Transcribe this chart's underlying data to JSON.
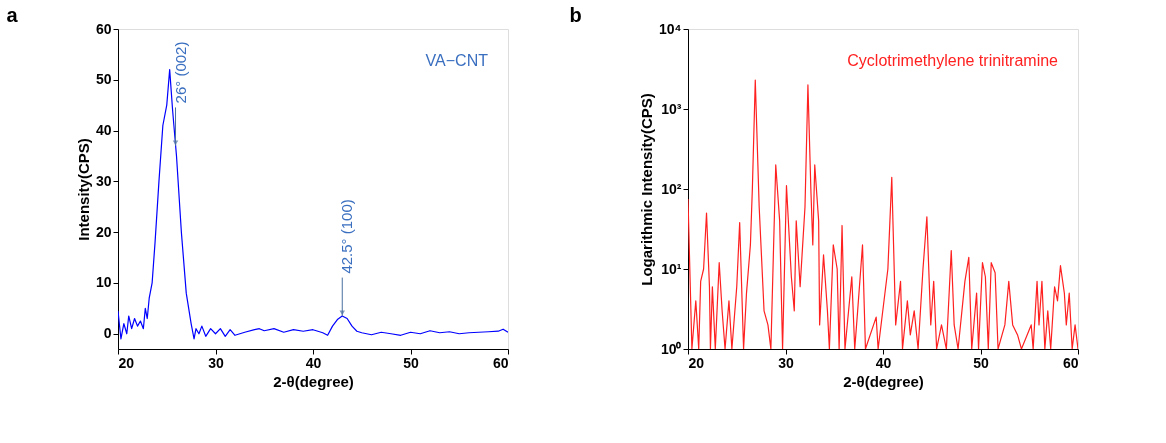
{
  "chart_data": [
    {
      "type": "line",
      "title": "a",
      "xlabel": "2-θ(degree)",
      "ylabel": "Intensity(CPS)",
      "xlim": [
        20,
        60
      ],
      "xticks": [
        20,
        30,
        40,
        50,
        60
      ],
      "ylim": [
        -3,
        60
      ],
      "yticks": [
        0,
        10,
        20,
        30,
        40,
        50,
        60
      ],
      "grid": false,
      "annotations": [
        {
          "text": "26° (002)",
          "x": 25.9,
          "y": 37
        },
        {
          "text": "42.5° (100)",
          "x": 43,
          "y": 3.5
        }
      ],
      "series": [
        {
          "name": "VA−CNT",
          "color": "#0000ff",
          "x": [
            20,
            20.3,
            20.6,
            20.9,
            21.1,
            21.4,
            21.7,
            22,
            22.3,
            22.6,
            22.8,
            23,
            23.2,
            23.5,
            23.8,
            24.2,
            24.6,
            25,
            25.3,
            25.6,
            26,
            26.5,
            27,
            27.5,
            27.8,
            28,
            28.3,
            28.6,
            29,
            29.5,
            30,
            30.5,
            31,
            31.5,
            32,
            33,
            34,
            34.5,
            35,
            36,
            37,
            38,
            39,
            40,
            41,
            41.5,
            42,
            42.5,
            43,
            43.5,
            44,
            44.5,
            45,
            46,
            47,
            48,
            49,
            50,
            51,
            52,
            53,
            54,
            55,
            56,
            57,
            58,
            59,
            59.5,
            60
          ],
          "values": [
            4.5,
            -1,
            2,
            0,
            3.5,
            1,
            3,
            1.5,
            2.5,
            1,
            5,
            3,
            7,
            10,
            18,
            30,
            41,
            45,
            52,
            44,
            35,
            20,
            8,
            2,
            -1,
            1,
            0,
            1.5,
            -0.5,
            1,
            0,
            1,
            -0.5,
            0.8,
            -0.3,
            0.3,
            0.8,
            1,
            0.6,
            1,
            0.3,
            0.8,
            0.5,
            0.8,
            0.2,
            -0.3,
            1.5,
            2.8,
            3.5,
            3,
            1.5,
            0.5,
            0.2,
            -0.2,
            0.3,
            0,
            -0.3,
            0.3,
            0,
            0.6,
            0.2,
            0.4,
            0,
            0.2,
            0.3,
            0.4,
            0.5,
            0.9,
            0.3
          ]
        }
      ]
    },
    {
      "type": "line",
      "title": "b",
      "xlabel": "2-θ(degree)",
      "ylabel": "Logarithmic Intensity(CPS)",
      "xlim": [
        20,
        60
      ],
      "xticks": [
        20,
        30,
        40,
        50,
        60
      ],
      "ylim": [
        1,
        10000
      ],
      "log": "y",
      "grid": false,
      "yticks": [
        {
          "value": 1,
          "label": "10⁰"
        },
        {
          "value": 10,
          "label": "10¹"
        },
        {
          "value": 100,
          "label": "10²"
        },
        {
          "value": 1000,
          "label": "10³"
        },
        {
          "value": 10000,
          "label": "10⁴"
        }
      ],
      "series": [
        {
          "name": "Cyclotrimethylene trinitramine",
          "color": "#ff2020",
          "x": [
            20,
            20.4,
            20.8,
            21.1,
            21.3,
            21.6,
            21.9,
            22.2,
            22.3,
            22.5,
            22.8,
            23.2,
            23.5,
            23.8,
            24.2,
            24.5,
            25,
            25.3,
            25.7,
            26,
            26.4,
            26.6,
            26.9,
            27.3,
            27.8,
            28.2,
            28.5,
            29,
            29.4,
            29.7,
            30.1,
            30.6,
            30.9,
            31.1,
            31.5,
            32,
            32.3,
            32.6,
            32.8,
            33,
            33.4,
            33.5,
            33.9,
            34.3,
            34.5,
            34.9,
            35.3,
            35.5,
            35.8,
            36.1,
            36.8,
            37.1,
            37.4,
            37.9,
            38.2,
            39.3,
            39.5,
            40.5,
            40.9,
            41.3,
            41.8,
            42,
            42.5,
            42.8,
            43.2,
            43.6,
            44.1,
            44.5,
            44.9,
            45.2,
            45.5,
            46,
            46.5,
            47,
            47.3,
            47.7,
            48.4,
            48.8,
            49.1,
            49.6,
            49.8,
            50.2,
            50.5,
            50.8,
            51.1,
            51.5,
            51.8,
            52.5,
            52.9,
            53.3,
            53.8,
            54.2,
            55.2,
            55.4,
            55.8,
            56,
            56.3,
            56.6,
            56.9,
            57.2,
            57.6,
            57.9,
            58.2,
            58.6,
            58.8,
            59.1,
            59.4,
            59.7,
            60
          ],
          "values": [
            75,
            1,
            4,
            1,
            7,
            10,
            50,
            6,
            1,
            6,
            1,
            12,
            3,
            1,
            4,
            1,
            6,
            38,
            1,
            5,
            20,
            100,
            2300,
            60,
            3,
            2,
            1,
            200,
            40,
            1,
            110,
            8,
            3,
            40,
            6,
            60,
            2000,
            100,
            20,
            200,
            40,
            2,
            15,
            3,
            1,
            20,
            10,
            1,
            35,
            1,
            8,
            1,
            3,
            20,
            1,
            2.5,
            1,
            10,
            140,
            2,
            7,
            1,
            4,
            1.5,
            3,
            1,
            10,
            45,
            2,
            7,
            1,
            2,
            1,
            17,
            2,
            1,
            7,
            14,
            1,
            5,
            1,
            12,
            8,
            1,
            12,
            9,
            1,
            2,
            7,
            2,
            1.5,
            1,
            2,
            1,
            7,
            2,
            7,
            1,
            3,
            1,
            6,
            4,
            11,
            5,
            2,
            5,
            1,
            2,
            1
          ]
        }
      ]
    }
  ]
}
